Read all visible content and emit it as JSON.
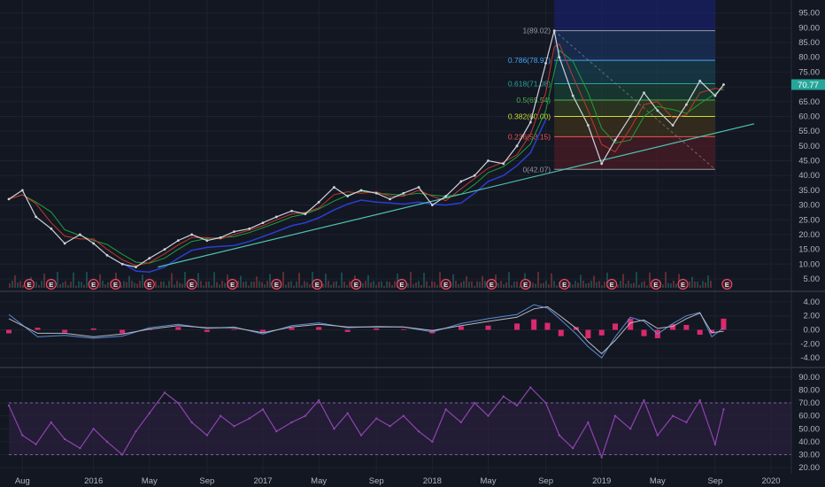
{
  "colors": {
    "background": "#131722",
    "grid": "#1e2230",
    "price_line": "#cfd2dc",
    "trendline": "#4fc3b0",
    "ma_green": "#1e9e3a",
    "ma_red": "#c0392b",
    "ma_blue": "#2b3fd1",
    "macd_line": "#5b8dd6",
    "signal_line": "#b8b8c0",
    "histogram": "#ff2d7a",
    "rsi_line": "#8e44ad",
    "rsi_band": "#2a1f3d",
    "price_tag": "#26a69a"
  },
  "price_axis": {
    "ticks": [
      "95.00",
      "90.00",
      "85.00",
      "80.00",
      "75.00",
      "70.00",
      "65.00",
      "60.00",
      "55.00",
      "50.00",
      "45.00",
      "40.00",
      "35.00",
      "30.00",
      "25.00",
      "20.00",
      "15.00",
      "10.00",
      "5.00"
    ],
    "ylim": [
      2,
      97
    ],
    "last_price": "70.77"
  },
  "macd_axis": {
    "ticks": [
      "4.00",
      "2.00",
      "0.00",
      "-2.00",
      "-4.00"
    ],
    "ylim": [
      -5,
      5
    ]
  },
  "rsi_axis": {
    "ticks": [
      "90.00",
      "80.00",
      "70.00",
      "60.00",
      "50.00",
      "40.00",
      "30.00",
      "20.00"
    ],
    "ylim": [
      18,
      94
    ]
  },
  "time_axis": {
    "labels": [
      "Aug",
      "2016",
      "May",
      "Sep",
      "2017",
      "May",
      "Sep",
      "2018",
      "May",
      "Sep",
      "2019",
      "May",
      "Sep",
      "2020"
    ],
    "positions": [
      2015.58,
      2016.0,
      2016.33,
      2016.67,
      2017.0,
      2017.33,
      2017.67,
      2018.0,
      2018.33,
      2018.67,
      2019.0,
      2019.33,
      2019.67,
      2020.0
    ],
    "range": [
      2015.5,
      2020.12
    ]
  },
  "earnings": {
    "label": "E",
    "dates": [
      2015.62,
      2015.75,
      2016.0,
      2016.13,
      2016.33,
      2016.58,
      2016.82,
      2017.08,
      2017.32,
      2017.55,
      2017.82,
      2018.08,
      2018.35,
      2018.55,
      2018.78,
      2019.06,
      2019.32,
      2019.48,
      2019.74
    ]
  },
  "fibonacci": {
    "start_date": 2018.72,
    "end_date": 2019.67,
    "levels": [
      {
        "label": "1(89.02)",
        "price": 89.02,
        "color": "#9598a1"
      },
      {
        "label": "0.786(78.97)",
        "price": 78.97,
        "color": "#42a5f5"
      },
      {
        "label": "0.618(71.08)",
        "price": 71.08,
        "color": "#26a69a"
      },
      {
        "label": "0.5(65.54)",
        "price": 65.54,
        "color": "#4caf50"
      },
      {
        "label": "0.382(60.00)",
        "price": 60.0,
        "color": "#cddc39"
      },
      {
        "label": "0.236(53.15)",
        "price": 53.15,
        "color": "#ef5350"
      },
      {
        "label": "0(42.07)",
        "price": 42.07,
        "color": "#9598a1"
      }
    ]
  },
  "chart_data": [
    {
      "type": "line",
      "title": "",
      "xlabel": "",
      "ylabel": "",
      "ylim": [
        2,
        97
      ],
      "series": [
        {
          "x": [
            2015.5,
            2015.58,
            2015.66,
            2015.75,
            2015.83,
            2015.92,
            2016.0,
            2016.08,
            2016.17,
            2016.25,
            2016.33,
            2016.42,
            2016.5,
            2016.58,
            2016.67,
            2016.75,
            2016.83,
            2016.92,
            2017.0,
            2017.08,
            2017.17,
            2017.25,
            2017.33,
            2017.42,
            2017.5,
            2017.58,
            2017.67,
            2017.75,
            2017.83,
            2017.92,
            2018.0,
            2018.08,
            2018.17,
            2018.25,
            2018.33,
            2018.42,
            2018.5,
            2018.58,
            2018.67,
            2018.72,
            2018.75,
            2018.83,
            2018.92,
            2019.0,
            2019.08,
            2019.17,
            2019.25,
            2019.33,
            2019.42,
            2019.5,
            2019.58,
            2019.67,
            2019.72
          ],
          "values": [
            32,
            35,
            26,
            22,
            17,
            20,
            17,
            13,
            10,
            9,
            12,
            15,
            18,
            20,
            18,
            19,
            21,
            22,
            24,
            26,
            28,
            27,
            31,
            36,
            33,
            35,
            34,
            32,
            34,
            36,
            30,
            33,
            38,
            40,
            45,
            44,
            50,
            58,
            78,
            89,
            80,
            67,
            57,
            44,
            52,
            60,
            68,
            62,
            57,
            64,
            72,
            67,
            70.77
          ]
        }
      ]
    },
    {
      "type": "bar",
      "title": "",
      "ylim": [
        -5,
        5
      ],
      "x": [
        2015.5,
        2015.67,
        2015.83,
        2016.0,
        2016.17,
        2016.33,
        2016.5,
        2016.67,
        2016.83,
        2017.0,
        2017.17,
        2017.33,
        2017.5,
        2017.67,
        2017.83,
        2018.0,
        2018.17,
        2018.33,
        2018.5,
        2018.6,
        2018.68,
        2018.76,
        2018.85,
        2018.92,
        2019.0,
        2019.08,
        2019.17,
        2019.25,
        2019.33,
        2019.42,
        2019.5,
        2019.58,
        2019.65,
        2019.72
      ],
      "values": [
        -0.5,
        0.3,
        -0.4,
        0.2,
        -0.5,
        0.2,
        0.4,
        -0.3,
        0.1,
        -0.3,
        0.3,
        0.4,
        -0.3,
        0.2,
        0.1,
        -0.5,
        0.5,
        0.6,
        0.9,
        1.5,
        1.0,
        -0.9,
        0.4,
        -1.2,
        -0.8,
        0.9,
        1.6,
        -0.9,
        -1.2,
        0.8,
        0.7,
        -0.7,
        -0.5,
        1.6
      ],
      "series": [
        {
          "x": [
            2015.5,
            2015.67,
            2015.83,
            2016.0,
            2016.17,
            2016.33,
            2016.5,
            2016.67,
            2016.83,
            2017.0,
            2017.17,
            2017.33,
            2017.5,
            2017.67,
            2017.83,
            2018.0,
            2018.17,
            2018.33,
            2018.5,
            2018.6,
            2018.68,
            2018.76,
            2018.85,
            2018.92,
            2019.0,
            2019.08,
            2019.17,
            2019.25,
            2019.33,
            2019.42,
            2019.5,
            2019.58,
            2019.65,
            2019.72
          ],
          "values": [
            2.2,
            -1.0,
            -0.8,
            -1.2,
            -0.9,
            0.3,
            0.8,
            0.2,
            0.4,
            -0.6,
            0.6,
            1.0,
            0.3,
            0.5,
            0.4,
            -0.3,
            0.9,
            1.6,
            2.2,
            3.6,
            3.1,
            1.4,
            -0.6,
            -2.4,
            -4.0,
            -1.0,
            1.8,
            1.2,
            -0.6,
            0.9,
            2.0,
            2.5,
            -1.0,
            0.3
          ]
        },
        {
          "x": [
            2015.5,
            2015.67,
            2015.83,
            2016.0,
            2016.17,
            2016.33,
            2016.5,
            2016.67,
            2016.83,
            2017.0,
            2017.17,
            2017.33,
            2017.5,
            2017.67,
            2017.83,
            2018.0,
            2018.17,
            2018.33,
            2018.5,
            2018.6,
            2018.68,
            2018.76,
            2018.85,
            2018.92,
            2019.0,
            2019.08,
            2019.17,
            2019.25,
            2019.33,
            2019.42,
            2019.5,
            2019.58,
            2019.65,
            2019.72
          ],
          "values": [
            1.6,
            -0.5,
            -0.5,
            -1.0,
            -0.6,
            0.1,
            0.6,
            0.3,
            0.3,
            -0.4,
            0.4,
            0.8,
            0.4,
            0.4,
            0.4,
            -0.1,
            0.6,
            1.2,
            1.8,
            3.0,
            3.3,
            1.9,
            0.2,
            -1.7,
            -3.4,
            -1.5,
            1.0,
            1.4,
            0.2,
            0.5,
            1.6,
            2.4,
            -0.4,
            -0.2
          ]
        }
      ]
    },
    {
      "type": "line",
      "title": "",
      "ylim": [
        18,
        94
      ],
      "series": [
        {
          "x": [
            2015.5,
            2015.58,
            2015.66,
            2015.75,
            2015.83,
            2015.92,
            2016.0,
            2016.08,
            2016.17,
            2016.25,
            2016.33,
            2016.42,
            2016.5,
            2016.58,
            2016.67,
            2016.75,
            2016.83,
            2016.92,
            2017.0,
            2017.08,
            2017.17,
            2017.25,
            2017.33,
            2017.42,
            2017.5,
            2017.58,
            2017.67,
            2017.75,
            2017.83,
            2017.92,
            2018.0,
            2018.08,
            2018.17,
            2018.25,
            2018.33,
            2018.42,
            2018.5,
            2018.58,
            2018.67,
            2018.75,
            2018.83,
            2018.92,
            2019.0,
            2019.08,
            2019.17,
            2019.25,
            2019.33,
            2019.42,
            2019.5,
            2019.58,
            2019.67,
            2019.72
          ],
          "values": [
            68,
            45,
            38,
            55,
            42,
            35,
            50,
            40,
            30,
            48,
            62,
            78,
            70,
            55,
            45,
            60,
            52,
            58,
            65,
            48,
            55,
            60,
            72,
            50,
            62,
            45,
            58,
            52,
            60,
            48,
            40,
            65,
            55,
            70,
            60,
            75,
            68,
            82,
            70,
            45,
            35,
            55,
            28,
            60,
            50,
            72,
            45,
            60,
            55,
            72,
            38,
            65
          ]
        }
      ]
    }
  ]
}
